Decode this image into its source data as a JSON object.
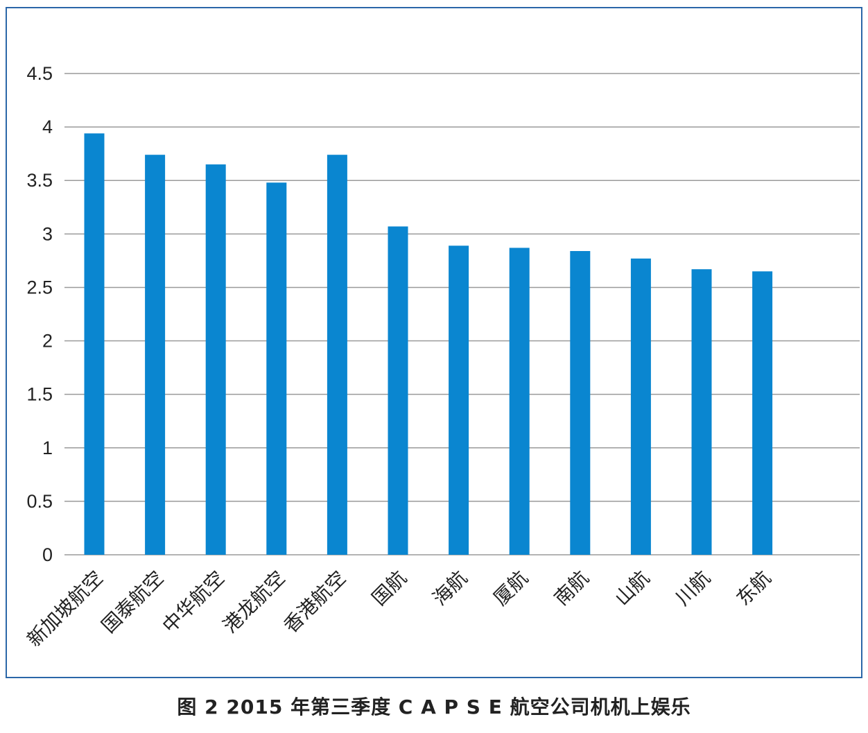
{
  "chart_data": {
    "type": "bar",
    "title": "",
    "xlabel": "",
    "ylabel": "",
    "ylim": [
      0,
      4.5
    ],
    "yticks": [
      "0",
      "0.5",
      "1",
      "1.5",
      "2",
      "2.5",
      "3",
      "3.5",
      "4",
      "4.5"
    ],
    "grid": true,
    "legend": "none",
    "categories": [
      "新加坡航空",
      "国泰航空",
      "中华航空",
      "港龙航空",
      "香港航空",
      "国航",
      "海航",
      "厦航",
      "南航",
      "山航",
      "川航",
      "东航"
    ],
    "values": [
      3.94,
      3.74,
      3.65,
      3.48,
      3.74,
      3.07,
      2.89,
      2.87,
      2.84,
      2.77,
      2.67,
      2.65
    ],
    "bar_color": "#0a86d0"
  },
  "caption": "图 2  2015 年第三季度 C A P S E  航空公司机机上娱乐"
}
